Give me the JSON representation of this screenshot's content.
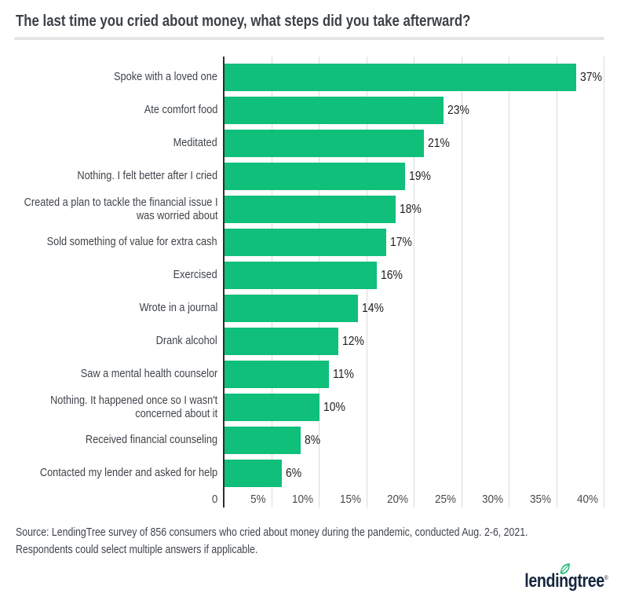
{
  "header": {
    "title": "The last time you cried about money, what steps did you take afterward?"
  },
  "chart_data": {
    "type": "bar",
    "orientation": "horizontal",
    "title": "The last time you cried about money, what steps did you take afterward?",
    "xlabel": "",
    "ylabel": "",
    "xlim": [
      0,
      40
    ],
    "grid": true,
    "bar_color": "#10bf7a",
    "categories": [
      "Spoke with a loved one",
      "Ate comfort food",
      "Meditated",
      "Nothing. I felt better after I cried",
      "Created a plan to tackle the financial issue I was worried about",
      "Sold something of value for extra cash",
      "Exercised",
      "Wrote in a journal",
      "Drank alcohol",
      "Saw a mental health counselor",
      "Nothing. It happened once so I wasn't concerned about it",
      "Received financial counseling",
      "Contacted my lender and asked for help"
    ],
    "category_lines": [
      [
        "Spoke with a loved one"
      ],
      [
        "Ate comfort food"
      ],
      [
        "Meditated"
      ],
      [
        "Nothing. I felt better after I cried"
      ],
      [
        "Created a plan to tackle the financial issue I",
        "was worried about"
      ],
      [
        "Sold something of value for extra cash"
      ],
      [
        "Exercised"
      ],
      [
        "Wrote in a journal"
      ],
      [
        "Drank alcohol"
      ],
      [
        "Saw a mental health counselor"
      ],
      [
        "Nothing. It happened once so I wasn't",
        "concerned about it"
      ],
      [
        "Received financial counseling"
      ],
      [
        "Contacted my lender and asked for help"
      ]
    ],
    "values": [
      37,
      23,
      21,
      19,
      18,
      17,
      16,
      14,
      12,
      11,
      10,
      8,
      6
    ],
    "value_labels": [
      "37%",
      "23%",
      "21%",
      "19%",
      "18%",
      "17%",
      "16%",
      "14%",
      "12%",
      "11%",
      "10%",
      "8%",
      "6%"
    ],
    "x_ticks": [
      {
        "pct": 0,
        "label": "0"
      },
      {
        "pct": 5,
        "label": "5%"
      },
      {
        "pct": 10,
        "label": "10%"
      },
      {
        "pct": 15,
        "label": "15%"
      },
      {
        "pct": 20,
        "label": "20%"
      },
      {
        "pct": 25,
        "label": "25%"
      },
      {
        "pct": 30,
        "label": "30%"
      },
      {
        "pct": 35,
        "label": "35%"
      },
      {
        "pct": 40,
        "label": "40%"
      }
    ]
  },
  "footer": {
    "source_line1": "Source: LendingTree survey of 856 consumers who cried about money during the pandemic, conducted Aug. 2-6, 2021.",
    "source_line2": "Respondents could select multiple answers if applicable.",
    "logo_text": "lendingtree",
    "logo_registered": "®",
    "logo_leaf_icon": "leaf-icon"
  },
  "colors": {
    "bar": "#10bf7a",
    "axis": "#2e2e2e",
    "gridline": "#dbdbdb",
    "title_text": "#3c4247",
    "label_text": "#3f444a",
    "tick_text": "#4a4a4a",
    "value_text": "#1c1c1c",
    "logo_navy": "#15273d",
    "logo_leaf_green": "#1eb776",
    "divider": "#e5e5e5",
    "background": "#ffffff"
  }
}
